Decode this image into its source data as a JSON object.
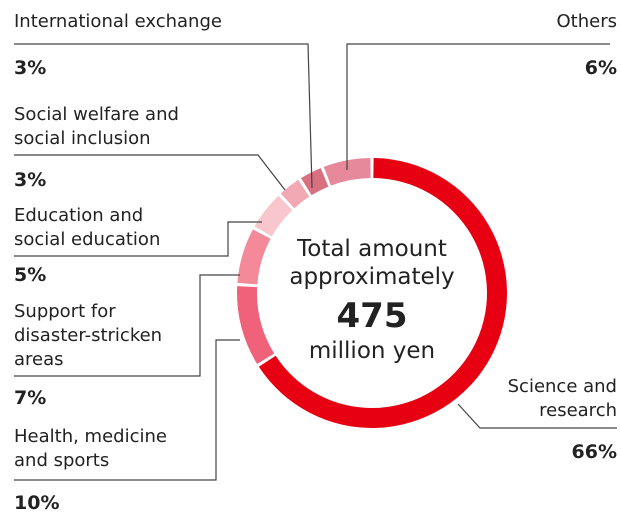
{
  "chart_data": {
    "type": "donut",
    "categories": [
      "Science and\nresearch",
      "Health, medicine\nand sports",
      "Support for\ndisaster-stricken\nareas",
      "Education and\nsocial education",
      "Social welfare and\nsocial inclusion",
      "International exchange",
      "Others"
    ],
    "values": [
      66,
      10,
      7,
      5,
      3,
      3,
      6
    ],
    "value_labels": [
      "66%",
      "10%",
      "7%",
      "5%",
      "3%",
      "3%",
      "6%"
    ],
    "colors": [
      "#e60012",
      "#f0627a",
      "#f4899a",
      "#f9c6cd",
      "#f2a9b4",
      "#d8707f",
      "#e5899b"
    ],
    "center_text": [
      "Total amount",
      "approximately",
      "475",
      "million yen"
    ]
  }
}
